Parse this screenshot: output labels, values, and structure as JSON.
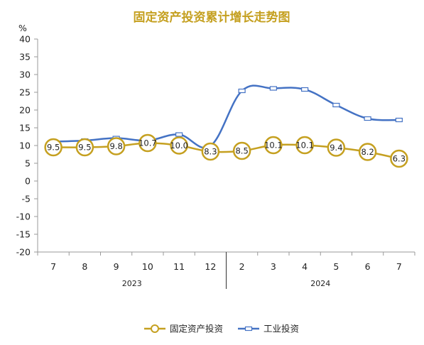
{
  "chart_data": {
    "type": "line",
    "title": "固定资产投资累计增长走势图",
    "unit": "%",
    "ylim": [
      -20,
      40
    ],
    "yticks": [
      40,
      35,
      30,
      25,
      20,
      15,
      10,
      5,
      0,
      -5,
      -10,
      -15,
      -20
    ],
    "categories": [
      "7",
      "8",
      "9",
      "10",
      "11",
      "12",
      "2",
      "3",
      "4",
      "5",
      "6",
      "7"
    ],
    "year_groups": [
      {
        "label": "2023",
        "count": 6
      },
      {
        "label": "2024",
        "count": 6
      }
    ],
    "series": [
      {
        "name": "固定资产投资",
        "values": [
          9.5,
          9.5,
          9.8,
          10.7,
          10.0,
          8.3,
          8.5,
          10.1,
          10.1,
          9.4,
          8.2,
          6.3
        ],
        "show_labels": true
      },
      {
        "name": "工业投资",
        "values": [
          11.1,
          11.4,
          12.1,
          11.4,
          13.1,
          9.9,
          25.4,
          26.1,
          25.8,
          21.4,
          17.6,
          17.2
        ],
        "show_labels": false
      }
    ],
    "legend_position": "bottom",
    "grid": false
  },
  "colors": {
    "title": "#c5a020",
    "series_0": "#c5a020",
    "series_1": "#4472c4",
    "axis": "#999999"
  }
}
